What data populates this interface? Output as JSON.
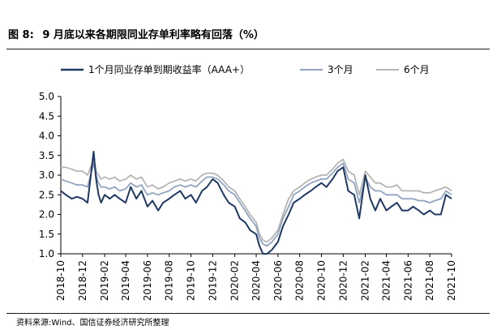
{
  "header": {
    "title_label": "图 8:",
    "title_text": "9 月底以来各期限同业存单利率略有回落（%）"
  },
  "footer": {
    "source": "资料来源:Wind、国信证券经济研究所整理"
  },
  "chart_data": {
    "type": "line",
    "title": "",
    "xlabel": "",
    "ylabel": "",
    "ylim": [
      1.0,
      5.0
    ],
    "yticks": [
      "1.0",
      "1.5",
      "2.0",
      "2.5",
      "3.0",
      "3.5",
      "4.0",
      "4.5",
      "5.0"
    ],
    "xrange": [
      "2018-10",
      "2021-10"
    ],
    "xticks": [
      "2018-10",
      "2018-12",
      "2019-02",
      "2019-04",
      "2019-06",
      "2019-08",
      "2019-10",
      "2019-12",
      "2020-02",
      "2020-04",
      "2020-06",
      "2020-08",
      "2020-10",
      "2020-12",
      "2021-02",
      "2021-04",
      "2021-06",
      "2021-08",
      "2021-10"
    ],
    "legend_position": "top",
    "grid": false,
    "colors": {
      "s1": "#1f3864",
      "s2": "#8fa4bf",
      "s3": "#b5b5b5"
    },
    "series": [
      {
        "name": "1个月同业存单到期收益率（AAA+）",
        "x": [
          "2018-10-01",
          "2018-10-15",
          "2018-11-01",
          "2018-11-15",
          "2018-12-01",
          "2018-12-15",
          "2019-01-01",
          "2019-01-08",
          "2019-01-15",
          "2019-01-22",
          "2019-02-01",
          "2019-02-15",
          "2019-03-01",
          "2019-03-15",
          "2019-04-01",
          "2019-04-15",
          "2019-05-01",
          "2019-05-15",
          "2019-06-01",
          "2019-06-15",
          "2019-07-01",
          "2019-07-15",
          "2019-08-01",
          "2019-08-15",
          "2019-09-01",
          "2019-09-15",
          "2019-10-01",
          "2019-10-15",
          "2019-11-01",
          "2019-11-15",
          "2019-12-01",
          "2019-12-15",
          "2020-01-01",
          "2020-01-15",
          "2020-02-01",
          "2020-02-15",
          "2020-03-01",
          "2020-03-15",
          "2020-04-01",
          "2020-04-10",
          "2020-04-20",
          "2020-05-01",
          "2020-05-15",
          "2020-06-01",
          "2020-06-15",
          "2020-07-01",
          "2020-07-15",
          "2020-08-01",
          "2020-08-15",
          "2020-09-01",
          "2020-09-15",
          "2020-10-01",
          "2020-10-15",
          "2020-11-01",
          "2020-11-15",
          "2020-12-01",
          "2020-12-15",
          "2021-01-01",
          "2021-01-15",
          "2021-02-01",
          "2021-02-15",
          "2021-03-01",
          "2021-03-15",
          "2021-04-01",
          "2021-04-15",
          "2021-05-01",
          "2021-05-15",
          "2021-06-01",
          "2021-06-15",
          "2021-07-01",
          "2021-07-15",
          "2021-08-01",
          "2021-08-15",
          "2021-09-01",
          "2021-09-15",
          "2021-10-01"
        ],
        "values": [
          2.6,
          2.5,
          2.4,
          2.45,
          2.4,
          2.3,
          3.6,
          2.9,
          2.5,
          2.3,
          2.5,
          2.4,
          2.5,
          2.4,
          2.3,
          2.7,
          2.4,
          2.6,
          2.2,
          2.35,
          2.1,
          2.3,
          2.4,
          2.5,
          2.6,
          2.4,
          2.5,
          2.3,
          2.6,
          2.7,
          2.9,
          2.8,
          2.5,
          2.3,
          2.2,
          1.9,
          1.8,
          1.6,
          1.5,
          1.2,
          1.0,
          1.0,
          1.1,
          1.3,
          1.7,
          2.0,
          2.3,
          2.4,
          2.5,
          2.6,
          2.7,
          2.8,
          2.7,
          2.9,
          3.1,
          3.2,
          2.6,
          2.5,
          1.9,
          3.0,
          2.4,
          2.1,
          2.4,
          2.1,
          2.2,
          2.3,
          2.1,
          2.1,
          2.2,
          2.1,
          2.0,
          2.1,
          2.0,
          2.0,
          2.5,
          2.4
        ]
      },
      {
        "name": "3个月",
        "x": [
          "2018-10-01",
          "2018-10-15",
          "2018-11-01",
          "2018-11-15",
          "2018-12-01",
          "2018-12-15",
          "2019-01-01",
          "2019-01-08",
          "2019-01-15",
          "2019-01-22",
          "2019-02-01",
          "2019-02-15",
          "2019-03-01",
          "2019-03-15",
          "2019-04-01",
          "2019-04-15",
          "2019-05-01",
          "2019-05-15",
          "2019-06-01",
          "2019-06-15",
          "2019-07-01",
          "2019-07-15",
          "2019-08-01",
          "2019-08-15",
          "2019-09-01",
          "2019-09-15",
          "2019-10-01",
          "2019-10-15",
          "2019-11-01",
          "2019-11-15",
          "2019-12-01",
          "2019-12-15",
          "2020-01-01",
          "2020-01-15",
          "2020-02-01",
          "2020-02-15",
          "2020-03-01",
          "2020-03-15",
          "2020-04-01",
          "2020-04-10",
          "2020-04-20",
          "2020-05-01",
          "2020-05-15",
          "2020-06-01",
          "2020-06-15",
          "2020-07-01",
          "2020-07-15",
          "2020-08-01",
          "2020-08-15",
          "2020-09-01",
          "2020-09-15",
          "2020-10-01",
          "2020-10-15",
          "2020-11-01",
          "2020-11-15",
          "2020-12-01",
          "2020-12-15",
          "2021-01-01",
          "2021-01-15",
          "2021-02-01",
          "2021-02-15",
          "2021-03-01",
          "2021-03-15",
          "2021-04-01",
          "2021-04-15",
          "2021-05-01",
          "2021-05-15",
          "2021-06-01",
          "2021-06-15",
          "2021-07-01",
          "2021-07-15",
          "2021-08-01",
          "2021-08-15",
          "2021-09-01",
          "2021-09-15",
          "2021-10-01"
        ],
        "values": [
          2.9,
          2.85,
          2.8,
          2.75,
          2.75,
          2.7,
          3.3,
          3.0,
          2.8,
          2.7,
          2.7,
          2.65,
          2.7,
          2.6,
          2.65,
          2.8,
          2.7,
          2.75,
          2.5,
          2.55,
          2.5,
          2.55,
          2.6,
          2.7,
          2.75,
          2.7,
          2.75,
          2.7,
          2.85,
          2.95,
          2.95,
          2.9,
          2.75,
          2.6,
          2.5,
          2.3,
          2.1,
          1.9,
          1.7,
          1.4,
          1.25,
          1.2,
          1.3,
          1.5,
          1.9,
          2.2,
          2.5,
          2.6,
          2.7,
          2.8,
          2.85,
          2.9,
          2.9,
          3.05,
          3.2,
          3.3,
          2.9,
          2.8,
          2.3,
          2.95,
          2.7,
          2.6,
          2.6,
          2.5,
          2.5,
          2.5,
          2.4,
          2.4,
          2.4,
          2.35,
          2.35,
          2.3,
          2.35,
          2.4,
          2.6,
          2.5
        ]
      },
      {
        "name": "6个月",
        "x": [
          "2018-10-01",
          "2018-10-15",
          "2018-11-01",
          "2018-11-15",
          "2018-12-01",
          "2018-12-15",
          "2019-01-01",
          "2019-01-08",
          "2019-01-15",
          "2019-01-22",
          "2019-02-01",
          "2019-02-15",
          "2019-03-01",
          "2019-03-15",
          "2019-04-01",
          "2019-04-15",
          "2019-05-01",
          "2019-05-15",
          "2019-06-01",
          "2019-06-15",
          "2019-07-01",
          "2019-07-15",
          "2019-08-01",
          "2019-08-15",
          "2019-09-01",
          "2019-09-15",
          "2019-10-01",
          "2019-10-15",
          "2019-11-01",
          "2019-11-15",
          "2019-12-01",
          "2019-12-15",
          "2020-01-01",
          "2020-01-15",
          "2020-02-01",
          "2020-02-15",
          "2020-03-01",
          "2020-03-15",
          "2020-04-01",
          "2020-04-10",
          "2020-04-20",
          "2020-05-01",
          "2020-05-15",
          "2020-06-01",
          "2020-06-15",
          "2020-07-01",
          "2020-07-15",
          "2020-08-01",
          "2020-08-15",
          "2020-09-01",
          "2020-09-15",
          "2020-10-01",
          "2020-10-15",
          "2020-11-01",
          "2020-11-15",
          "2020-12-01",
          "2020-12-15",
          "2021-01-01",
          "2021-01-15",
          "2021-02-01",
          "2021-02-15",
          "2021-03-01",
          "2021-03-15",
          "2021-04-01",
          "2021-04-15",
          "2021-05-01",
          "2021-05-15",
          "2021-06-01",
          "2021-06-15",
          "2021-07-01",
          "2021-07-15",
          "2021-08-01",
          "2021-08-15",
          "2021-09-01",
          "2021-09-15",
          "2021-10-01"
        ],
        "values": [
          3.2,
          3.2,
          3.15,
          3.1,
          3.1,
          3.0,
          3.4,
          3.1,
          3.0,
          2.9,
          2.95,
          2.9,
          2.95,
          2.85,
          2.9,
          3.0,
          2.9,
          2.95,
          2.7,
          2.75,
          2.65,
          2.7,
          2.8,
          2.85,
          2.9,
          2.85,
          2.9,
          2.85,
          3.0,
          3.05,
          3.05,
          3.0,
          2.85,
          2.7,
          2.6,
          2.4,
          2.2,
          2.0,
          1.8,
          1.5,
          1.35,
          1.3,
          1.4,
          1.6,
          2.0,
          2.4,
          2.6,
          2.7,
          2.8,
          2.9,
          2.95,
          3.0,
          3.0,
          3.15,
          3.3,
          3.4,
          3.1,
          3.0,
          2.5,
          3.1,
          2.95,
          2.8,
          2.8,
          2.7,
          2.7,
          2.75,
          2.6,
          2.6,
          2.6,
          2.6,
          2.55,
          2.55,
          2.6,
          2.65,
          2.7,
          2.6
        ]
      }
    ]
  }
}
